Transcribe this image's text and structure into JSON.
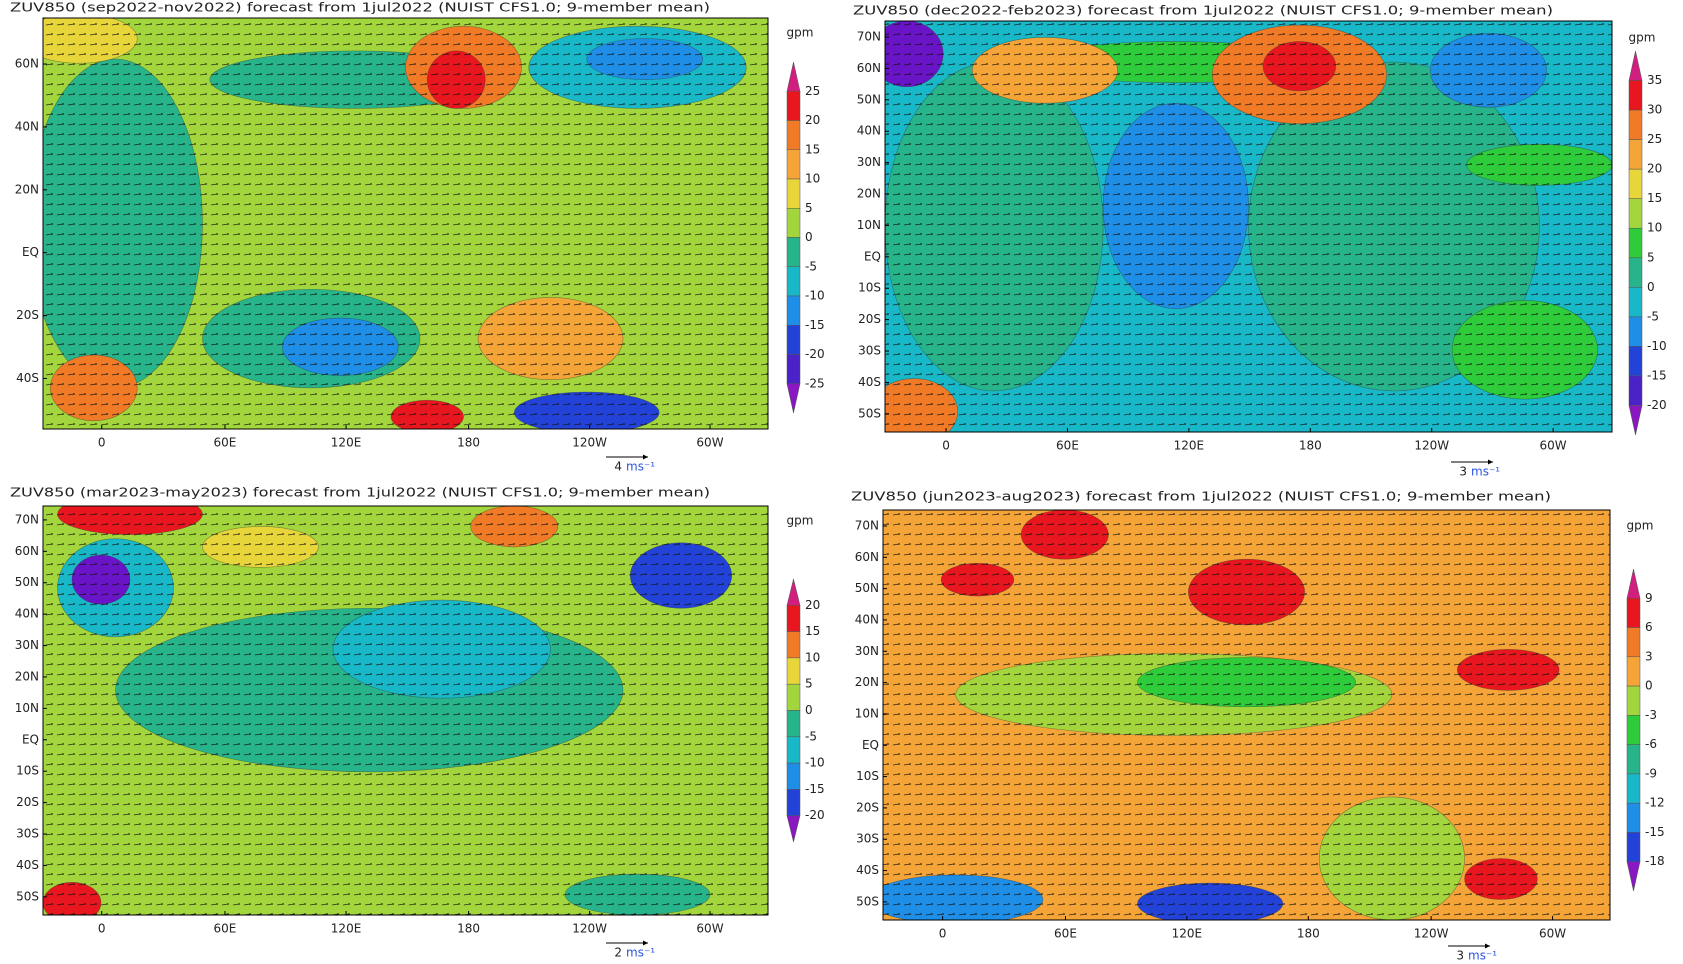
{
  "panels": [
    {
      "title": "ZUV850 (sep2022-nov2022) forecast from 1jul2022 (NUIST CFS1.0; 9-member mean)",
      "lat_labels": [
        "60N",
        "40N",
        "20N",
        "EQ",
        "20S",
        "40S"
      ],
      "lon_labels": [
        "0",
        "60E",
        "120E",
        "180",
        "120W",
        "60W"
      ],
      "unit": "gpm",
      "colorbar": {
        "ticks": [
          25,
          20,
          15,
          10,
          5,
          0,
          -5,
          -10,
          -15,
          -20,
          -25
        ],
        "colors": [
          "#d01f7e",
          "#e8161e",
          "#f07a26",
          "#f5a438",
          "#e8d53a",
          "#a3d63c",
          "#27b48a",
          "#19b8c8",
          "#1e8ee6",
          "#2343d8",
          "#4a22c8",
          "#8a18c0"
        ]
      },
      "ref_vector": {
        "magnitude": "4",
        "unit": "ms⁻¹"
      }
    },
    {
      "title": "ZUV850 (dec2022-feb2023) forecast from 1jul2022 (NUIST CFS1.0; 9-member mean)",
      "lat_labels": [
        "70N",
        "60N",
        "50N",
        "40N",
        "30N",
        "20N",
        "10N",
        "EQ",
        "10S",
        "20S",
        "30S",
        "40S",
        "50S"
      ],
      "lon_labels": [
        "0",
        "60E",
        "120E",
        "180",
        "120W",
        "60W"
      ],
      "unit": "gpm",
      "colorbar": {
        "ticks": [
          35,
          30,
          25,
          20,
          15,
          10,
          5,
          0,
          -5,
          -10,
          -15,
          -20
        ],
        "colors": [
          "#d01f7e",
          "#e8161e",
          "#f07a26",
          "#f5a438",
          "#e8d53a",
          "#a3d63c",
          "#2ecc3a",
          "#27b48a",
          "#19b8c8",
          "#1e8ee6",
          "#2343d8",
          "#4a22c8",
          "#8a18c0"
        ]
      },
      "ref_vector": {
        "magnitude": "3",
        "unit": "ms⁻¹"
      }
    },
    {
      "title": "ZUV850 (mar2023-may2023) forecast from 1jul2022 (NUIST CFS1.0; 9-member mean)",
      "lat_labels": [
        "70N",
        "60N",
        "50N",
        "40N",
        "30N",
        "20N",
        "10N",
        "EQ",
        "10S",
        "20S",
        "30S",
        "40S",
        "50S"
      ],
      "lon_labels": [
        "0",
        "60E",
        "120E",
        "180",
        "120W",
        "60W"
      ],
      "unit": "gpm",
      "colorbar": {
        "ticks": [
          20,
          15,
          10,
          5,
          0,
          -5,
          -10,
          -15,
          -20
        ],
        "colors": [
          "#d01f7e",
          "#e8161e",
          "#f07a26",
          "#e8d53a",
          "#a3d63c",
          "#27b48a",
          "#19b8c8",
          "#1e8ee6",
          "#2343d8",
          "#8a18c0"
        ]
      },
      "ref_vector": {
        "magnitude": "2",
        "unit": "ms⁻¹"
      }
    },
    {
      "title": "ZUV850 (jun2023-aug2023) forecast from 1jul2022 (NUIST CFS1.0; 9-member mean)",
      "lat_labels": [
        "70N",
        "60N",
        "50N",
        "40N",
        "30N",
        "20N",
        "10N",
        "EQ",
        "10S",
        "20S",
        "30S",
        "40S",
        "50S"
      ],
      "lon_labels": [
        "0",
        "60E",
        "120E",
        "180",
        "120W",
        "60W"
      ],
      "unit": "gpm",
      "colorbar": {
        "ticks": [
          9,
          6,
          3,
          0,
          -3,
          -6,
          -9,
          -12,
          -15,
          -18
        ],
        "colors": [
          "#d01f7e",
          "#e8161e",
          "#f07a26",
          "#f5a438",
          "#a3d63c",
          "#2ecc3a",
          "#27b48a",
          "#19b8c8",
          "#1e8ee6",
          "#2343d8",
          "#8a18c0"
        ]
      },
      "ref_vector": {
        "magnitude": "3",
        "unit": "ms⁻¹"
      }
    }
  ]
}
